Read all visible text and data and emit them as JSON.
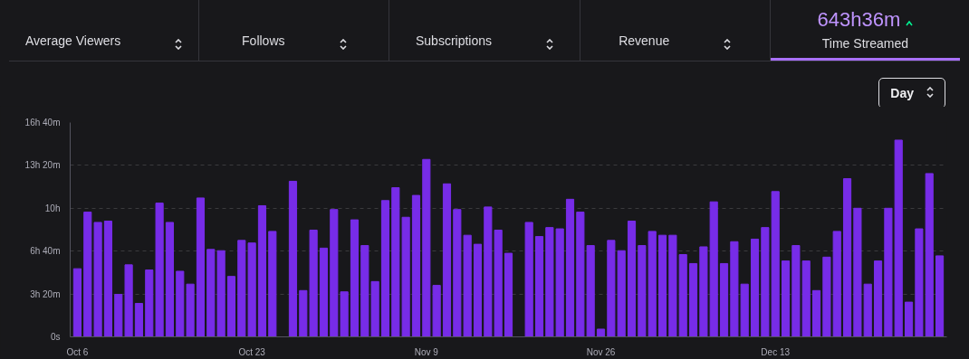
{
  "chart_data": {
    "type": "bar",
    "annotations": [
      "Average Viewers",
      "Follows",
      "Subscriptions",
      "Revenue",
      "643h36m",
      "Time Streamed",
      "Day"
    ],
    "categories": [
      "Oct 6",
      null,
      null,
      null,
      null,
      null,
      null,
      null,
      null,
      null,
      null,
      null,
      null,
      null,
      null,
      null,
      null,
      "Oct 23",
      null,
      null,
      null,
      null,
      null,
      null,
      null,
      null,
      null,
      null,
      null,
      null,
      null,
      null,
      null,
      null,
      "Nov 9",
      null,
      null,
      null,
      null,
      null,
      null,
      null,
      null,
      null,
      null,
      null,
      null,
      null,
      null,
      null,
      null,
      "Nov 26",
      null,
      null,
      null,
      null,
      null,
      null,
      null,
      null,
      null,
      null,
      null,
      null,
      null,
      null,
      null,
      null,
      "Dec 13",
      null,
      null,
      null,
      null,
      null,
      null,
      null,
      null,
      null,
      null,
      null,
      null,
      null,
      null,
      null,
      null
    ],
    "values": [
      5.3,
      9.7,
      8.9,
      9.0,
      3.3,
      5.6,
      2.6,
      5.2,
      10.4,
      8.9,
      5.1,
      4.1,
      10.8,
      6.8,
      6.7,
      4.7,
      7.5,
      7.3,
      10.2,
      8.2,
      0,
      12.1,
      3.6,
      8.3,
      6.9,
      9.9,
      3.5,
      9.1,
      7.1,
      4.3,
      10.6,
      11.6,
      9.3,
      11.0,
      13.8,
      4.0,
      11.9,
      9.9,
      7.9,
      7.2,
      10.1,
      8.3,
      6.5,
      0,
      8.9,
      7.8,
      8.5,
      8.4,
      10.7,
      9.7,
      7.1,
      0.6,
      7.5,
      6.7,
      9.0,
      7.1,
      8.2,
      7.9,
      7.9,
      6.4,
      5.7,
      7.0,
      10.5,
      5.7,
      7.4,
      4.1,
      7.6,
      8.5,
      11.3,
      5.9,
      7.1,
      5.9,
      3.6,
      6.2,
      8.2,
      12.3,
      10.0,
      4.1,
      5.9,
      10.0,
      15.3,
      2.7,
      8.4,
      12.7,
      6.3
    ],
    "color": "#772ce8",
    "ylim": [
      0,
      16.667
    ],
    "yticks": [
      {
        "value": 0,
        "label": "0s"
      },
      {
        "value": 3.333,
        "label": "3h 20m"
      },
      {
        "value": 6.667,
        "label": "6h 40m"
      },
      {
        "value": 10,
        "label": "10h"
      },
      {
        "value": 13.333,
        "label": "13h 20m"
      },
      {
        "value": 16.667,
        "label": "16h 40m"
      }
    ],
    "grid": "y"
  }
}
